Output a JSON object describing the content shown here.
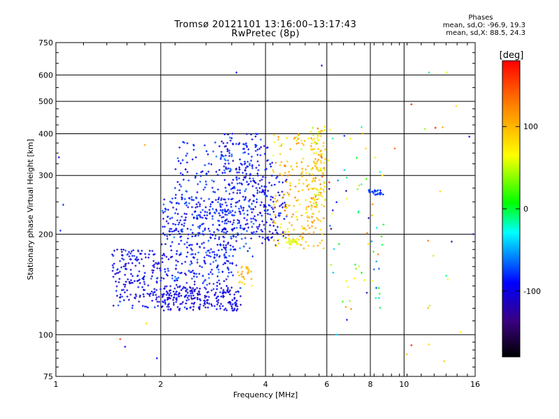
{
  "chart_data": {
    "type": "scatter",
    "title": "Tromsø 20121101 13:16:00–13:17:43",
    "subtitle": "RwPretec (8p)",
    "xlabel": "Frequency [MHz]",
    "ylabel": "Stationary phase Virtual Height [km]",
    "x_scale": "log",
    "y_scale": "log",
    "xlim": [
      1,
      16
    ],
    "ylim": [
      75,
      750
    ],
    "x_ticks": [
      1,
      2,
      4,
      6,
      8,
      10,
      16
    ],
    "x_tick_labels": [
      "1",
      "2",
      "4",
      "6",
      "8",
      "10",
      "16"
    ],
    "y_ticks": [
      75,
      100,
      200,
      300,
      400,
      500,
      600,
      750
    ],
    "y_tick_labels": [
      "75",
      "100",
      "200",
      "300",
      "400",
      "500",
      "600",
      "750"
    ],
    "grid": true,
    "colorbar": {
      "label": "[deg]",
      "range": [
        -180,
        180
      ],
      "ticks": [
        100,
        0,
        -100
      ],
      "tick_labels": [
        "100",
        "0",
        "-100"
      ],
      "colors": [
        "#000000",
        "#3a0080",
        "#0000ff",
        "#00ffff",
        "#00ff00",
        "#ffff00",
        "#ff8000",
        "#ff0000"
      ]
    },
    "phases_box": {
      "title": "Phases",
      "line1": "mean, sd,O: -96.9, 19.3",
      "line2": "mean, sd,X:  88.5, 24.3"
    },
    "clusters": [
      {
        "x_range": [
          1.45,
          2.0
        ],
        "y_range": [
          120,
          180
        ],
        "phase": -105,
        "spread": 20,
        "count": 180
      },
      {
        "x_range": [
          2.0,
          3.4
        ],
        "y_range": [
          118,
          140
        ],
        "phase": -110,
        "spread": 15,
        "count": 240
      },
      {
        "x_range": [
          2.0,
          3.3
        ],
        "y_range": [
          140,
          260
        ],
        "phase": -100,
        "spread": 20,
        "count": 320
      },
      {
        "x_range": [
          2.2,
          3.8
        ],
        "y_range": [
          170,
          380
        ],
        "phase": -95,
        "spread": 20,
        "count": 300
      },
      {
        "x_range": [
          3.0,
          4.2
        ],
        "y_range": [
          200,
          400
        ],
        "phase": -100,
        "spread": 25,
        "count": 180
      },
      {
        "x_range": [
          3.8,
          4.6
        ],
        "y_range": [
          185,
          300
        ],
        "phase": -105,
        "spread": 15,
        "count": 90
      },
      {
        "x_range": [
          4.2,
          5.9
        ],
        "y_range": [
          180,
          400
        ],
        "phase": 90,
        "spread": 30,
        "count": 220
      },
      {
        "x_range": [
          3.3,
          3.7
        ],
        "y_range": [
          140,
          160
        ],
        "phase": 85,
        "spread": 20,
        "count": 25
      },
      {
        "x_range": [
          5.4,
          5.95
        ],
        "y_range": [
          240,
          420
        ],
        "phase": 70,
        "spread": 40,
        "count": 90
      },
      {
        "x_range": [
          4.5,
          5.0
        ],
        "y_range": [
          185,
          195
        ],
        "phase": 55,
        "spread": 10,
        "count": 25
      },
      {
        "x_range": [
          6.0,
          8.8
        ],
        "y_range": [
          110,
          420
        ],
        "phase": 0,
        "spread": 120,
        "count": 70
      },
      {
        "x_range": [
          7.9,
          8.7
        ],
        "y_range": [
          262,
          272
        ],
        "phase": -90,
        "spread": 15,
        "count": 25
      },
      {
        "x_range": [
          9.0,
          15.0
        ],
        "y_range": [
          80,
          620
        ],
        "phase": 60,
        "spread": 100,
        "count": 16
      }
    ],
    "isolated_points": [
      {
        "x": 1.02,
        "y": 340,
        "phase": -100
      },
      {
        "x": 1.03,
        "y": 205,
        "phase": -90
      },
      {
        "x": 1.05,
        "y": 245,
        "phase": -90
      },
      {
        "x": 1.53,
        "y": 97,
        "phase": 150
      },
      {
        "x": 1.58,
        "y": 92,
        "phase": -100
      },
      {
        "x": 1.95,
        "y": 85,
        "phase": -100
      },
      {
        "x": 1.82,
        "y": 108,
        "phase": 80
      },
      {
        "x": 1.8,
        "y": 370,
        "phase": 100
      },
      {
        "x": 3.3,
        "y": 610,
        "phase": -100
      },
      {
        "x": 5.8,
        "y": 640,
        "phase": -100
      },
      {
        "x": 10.5,
        "y": 490,
        "phase": 170
      },
      {
        "x": 10.5,
        "y": 93,
        "phase": 170
      },
      {
        "x": 11.8,
        "y": 610,
        "phase": -20
      },
      {
        "x": 15.4,
        "y": 392,
        "phase": -100
      },
      {
        "x": 15.8,
        "y": 200,
        "phase": -110
      },
      {
        "x": 13.7,
        "y": 190,
        "phase": -120
      },
      {
        "x": 12.9,
        "y": 418,
        "phase": 100
      },
      {
        "x": 6.4,
        "y": 100,
        "phase": -50
      }
    ]
  }
}
